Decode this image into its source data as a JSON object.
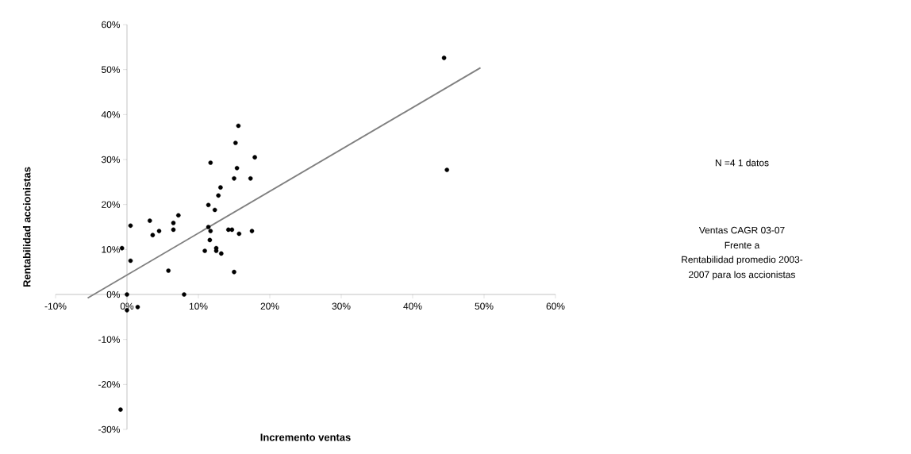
{
  "chart_data": {
    "type": "scatter",
    "xlabel": "Incremento ventas",
    "ylabel": "Rentabilidad accionistas",
    "annotations": [
      "N =4 1 datos",
      "Ventas CAGR  03-07",
      "Frente a",
      "Rentabilidad promedio 2003-",
      "2007 para los accionistas"
    ],
    "xlim": [
      -10,
      60
    ],
    "ylim": [
      -30,
      60
    ],
    "xticks": [
      {
        "value": -10,
        "label": "-10%"
      },
      {
        "value": 0,
        "label": "0%"
      },
      {
        "value": 10,
        "label": "10%"
      },
      {
        "value": 20,
        "label": "20%"
      },
      {
        "value": 30,
        "label": "30%"
      },
      {
        "value": 40,
        "label": "40%"
      },
      {
        "value": 50,
        "label": "50%"
      },
      {
        "value": 60,
        "label": "60%"
      }
    ],
    "yticks": [
      {
        "value": -30,
        "label": "-30%"
      },
      {
        "value": -20,
        "label": "-20%"
      },
      {
        "value": -10,
        "label": "-10%"
      },
      {
        "value": 0,
        "label": "0%"
      },
      {
        "value": 10,
        "label": "10%"
      },
      {
        "value": 20,
        "label": "20%"
      },
      {
        "value": 30,
        "label": "30%"
      },
      {
        "value": 40,
        "label": "40%"
      },
      {
        "value": 50,
        "label": "50%"
      },
      {
        "value": 60,
        "label": "60%"
      }
    ],
    "grid": false,
    "series": [
      {
        "color": "#000000",
        "marker": "circle",
        "x": [
          -0.7,
          0.5,
          0.5,
          0,
          0,
          1.5,
          3.2,
          3.6,
          4.5,
          5.8,
          6.5,
          6.5,
          7.2,
          8.0,
          10.9,
          11.4,
          11.4,
          11.7,
          11.6,
          11.7,
          12.3,
          12.5,
          12.5,
          13.2,
          12.8,
          13.1,
          14.2,
          14.7,
          15.0,
          15.0,
          15.2,
          15.6,
          15.4,
          15.7,
          17.3,
          17.5,
          17.9,
          44.4,
          44.8,
          -0.9
        ],
        "values": [
          10.3,
          15.3,
          7.5,
          0,
          -3.5,
          -2.8,
          16.4,
          13.2,
          14.1,
          5.3,
          15.9,
          14.4,
          17.6,
          0,
          9.7,
          19.9,
          15.0,
          14.1,
          12.1,
          29.3,
          18.8,
          10.3,
          9.7,
          9.1,
          22.0,
          23.8,
          14.4,
          14.4,
          25.8,
          5.0,
          33.7,
          37.5,
          28.1,
          13.5,
          25.8,
          14.1,
          30.5,
          52.6,
          27.7,
          -25.6
        ]
      },
      {
        "type": "line",
        "color": "#808080",
        "marker": "none",
        "line_style": "solid",
        "x": [
          -5.5,
          49.5
        ],
        "values": [
          -0.8,
          50.4
        ]
      }
    ]
  }
}
